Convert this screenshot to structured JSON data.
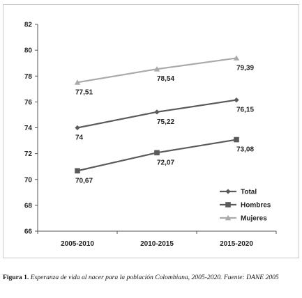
{
  "chart_data": {
    "type": "line",
    "categories": [
      "2005-2010",
      "2010-2015",
      "2015-2020"
    ],
    "ylim": [
      66,
      82
    ],
    "yticks": [
      66,
      68,
      70,
      72,
      74,
      76,
      78,
      80,
      82
    ],
    "grid": false,
    "legend_position": "bottom-right",
    "series": [
      {
        "name": "Total",
        "values": [
          74,
          75.22,
          76.15
        ],
        "labels": [
          "74",
          "75,22",
          "76,15"
        ],
        "color": "#5a5a5a",
        "marker": "diamond"
      },
      {
        "name": "Hombres",
        "values": [
          70.67,
          72.07,
          73.08
        ],
        "labels": [
          "70,67",
          "72,07",
          "73,08"
        ],
        "color": "#5a5a5a",
        "marker": "square"
      },
      {
        "name": "Mujeres",
        "values": [
          77.51,
          78.54,
          79.39
        ],
        "labels": [
          "77,51",
          "78,54",
          "79,39"
        ],
        "color": "#aaaaaa",
        "marker": "triangle"
      }
    ]
  },
  "caption": {
    "label": "Figura 1.",
    "text": " Esperanza de vida al nacer para la población Colombiana, 2005-2020. Fuente: DANE 2005"
  }
}
